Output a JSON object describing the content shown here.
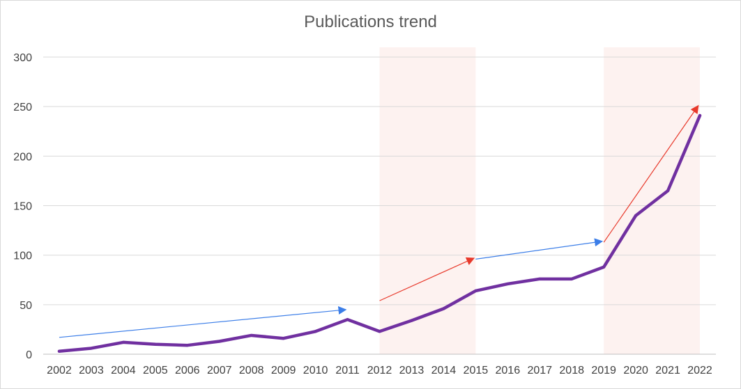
{
  "chart_data": {
    "type": "line",
    "title": "Publications trend",
    "xlabel": "",
    "ylabel": "",
    "ylim": [
      0,
      300
    ],
    "yticks": [
      0,
      50,
      100,
      150,
      200,
      250,
      300
    ],
    "grid": true,
    "legend": "none",
    "categories": [
      "2002",
      "2003",
      "2004",
      "2005",
      "2006",
      "2007",
      "2008",
      "2009",
      "2010",
      "2011",
      "2012",
      "2013",
      "2014",
      "2015",
      "2016",
      "2017",
      "2018",
      "2019",
      "2020",
      "2021",
      "2022"
    ],
    "series": [
      {
        "values": [
          3,
          6,
          12,
          10,
          9,
          13,
          19,
          16,
          23,
          35,
          23,
          34,
          46,
          64,
          71,
          76,
          76,
          88,
          140,
          165,
          241
        ],
        "color": "#7030a0"
      }
    ],
    "highlight_bands": [
      {
        "from": "2012",
        "to": "2015",
        "color": "#fdf2f0"
      },
      {
        "from": "2019",
        "to": "2022",
        "color": "#fdf2f0"
      }
    ],
    "trend_arrows": [
      {
        "x1": "2002",
        "y1": 17,
        "x2": "2011",
        "y2": 45,
        "color": "#3c7ee8"
      },
      {
        "x1": "2012",
        "y1": 54,
        "x2": "2015",
        "y2": 97,
        "color": "#e8392b"
      },
      {
        "x1": "2015",
        "y1": 96,
        "x2": "2019",
        "y2": 114,
        "color": "#3c7ee8"
      },
      {
        "x1": "2019",
        "y1": 113,
        "x2": "2022",
        "y2": 251,
        "color": "#e8392b"
      }
    ]
  }
}
